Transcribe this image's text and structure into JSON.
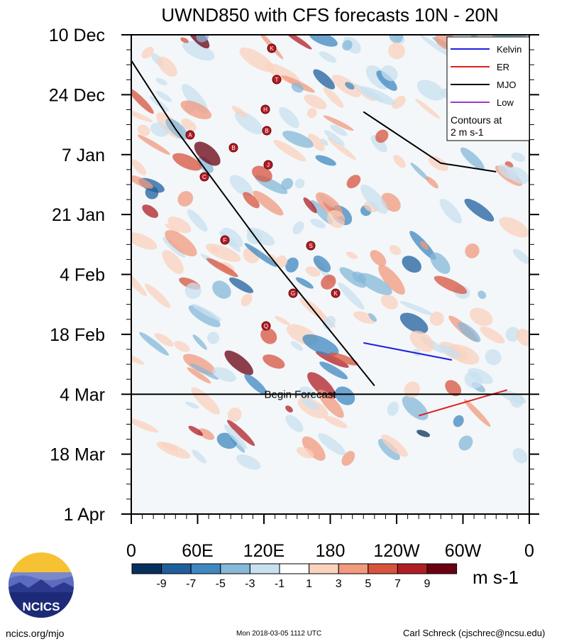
{
  "chart_data": {
    "type": "heatmap",
    "title": "UWND850 with CFS forecasts 10N - 20N",
    "x_tick_labels": [
      "0",
      "60E",
      "120E",
      "180",
      "120W",
      "60W",
      "0"
    ],
    "x_values_deg": [
      0,
      60,
      120,
      180,
      240,
      300,
      360
    ],
    "y_tick_labels": [
      "10 Dec",
      "24 Dec",
      "7 Jan",
      "21 Jan",
      "4 Feb",
      "18 Feb",
      "4 Mar",
      "18 Mar",
      "1 Apr"
    ],
    "y_day_offsets": [
      0,
      14,
      28,
      42,
      56,
      70,
      84,
      98,
      112
    ],
    "forecast_line": {
      "label": "Begin Forecast",
      "day_offset": 84
    },
    "legend": [
      {
        "name": "Kelvin",
        "color": "#1f1fe0"
      },
      {
        "name": "ER",
        "color": "#e01f1f"
      },
      {
        "name": "MJO",
        "color": "#000000"
      },
      {
        "name": "Low",
        "color": "#a035d0"
      }
    ],
    "legend_note": [
      "Contours at",
      "2 m s-1"
    ],
    "colorbar": {
      "labels": [
        "-9",
        "-7",
        "-5",
        "-3",
        "-1",
        "1",
        "3",
        "5",
        "7",
        "9"
      ],
      "colors": [
        "#08305e",
        "#1f5f9c",
        "#3f88c0",
        "#86b8d8",
        "#c8e0ef",
        "#ffffff",
        "#fbd2bd",
        "#f19a7d",
        "#d7543d",
        "#b01e26",
        "#6b0010"
      ],
      "units": "m s-1"
    },
    "storm_labels": [
      "K",
      "T",
      "H",
      "B",
      "A",
      "J",
      "B",
      "C",
      "F",
      "S",
      "G",
      "K",
      "Q"
    ],
    "series": [
      {
        "name": "MJO +",
        "color": "#000000",
        "points": [
          [
            0,
            6
          ],
          [
            40,
            22
          ],
          [
            120,
            50
          ],
          [
            220,
            82
          ]
        ]
      },
      {
        "name": "MJO +",
        "color": "#000000",
        "points": [
          [
            210,
            18
          ],
          [
            280,
            30
          ],
          [
            330,
            32
          ]
        ]
      },
      {
        "name": "ER +",
        "color": "#e01f1f",
        "points": [
          [
            340,
            83
          ],
          [
            300,
            86
          ],
          [
            260,
            89
          ]
        ]
      },
      {
        "name": "Kelvin",
        "color": "#1f1fe0",
        "points": [
          [
            210,
            72
          ],
          [
            290,
            76
          ]
        ]
      }
    ]
  },
  "footer": {
    "left": "ncics.org/mjo",
    "center": "Mon 2018-03-05 1112 UTC",
    "right": "Carl Schreck (cjschrec@ncsu.edu)",
    "logo_text": "NCICS"
  }
}
